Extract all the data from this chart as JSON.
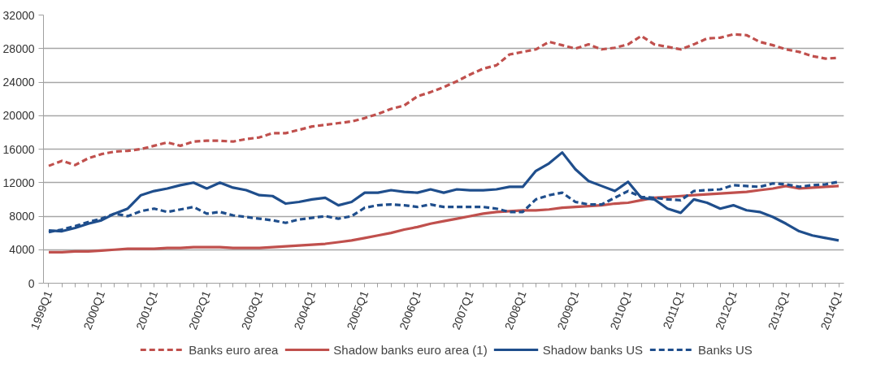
{
  "chart_data": {
    "type": "line",
    "categories": [
      "1999Q1",
      null,
      null,
      null,
      "2000Q1",
      null,
      null,
      null,
      "2001Q1",
      null,
      null,
      null,
      "2002Q1",
      null,
      null,
      null,
      "2003Q1",
      null,
      null,
      null,
      "2004Q1",
      null,
      null,
      null,
      "2005Q1",
      null,
      null,
      null,
      "2006Q1",
      null,
      null,
      null,
      "2007Q1",
      null,
      null,
      null,
      "2008Q1",
      null,
      null,
      null,
      "2009Q1",
      null,
      null,
      null,
      "2010Q1",
      null,
      null,
      null,
      "2011Q1",
      null,
      null,
      null,
      "2012Q1",
      null,
      null,
      null,
      "2013Q1",
      null,
      null,
      null,
      "2014Q1"
    ],
    "ylim": [
      0,
      32000
    ],
    "yticks": [
      0,
      4000,
      8000,
      12000,
      16000,
      20000,
      24000,
      28000,
      32000
    ],
    "grid": "y",
    "legend": "bottom",
    "marker": "none",
    "series": [
      {
        "name": "Banks euro area",
        "color": "#c0504d",
        "line_style": "dashed",
        "values": [
          14000,
          14600,
          14100,
          14900,
          15400,
          15700,
          15800,
          16000,
          16400,
          16800,
          16400,
          16900,
          17000,
          17000,
          16900,
          17200,
          17400,
          17900,
          17900,
          18300,
          18700,
          18900,
          19100,
          19300,
          19700,
          20200,
          20800,
          21200,
          22300,
          22800,
          23400,
          24100,
          24900,
          25600,
          26000,
          27300,
          27600,
          27900,
          28800,
          28400,
          28000,
          28500,
          27900,
          28100,
          28500,
          29500,
          28500,
          28200,
          27900,
          28500,
          29200,
          29300,
          29700,
          29600,
          28800,
          28400,
          27900,
          27600,
          27100,
          26800,
          26900
        ]
      },
      {
        "name": "Shadow banks euro area (1)",
        "color": "#c0504d",
        "line_style": "solid",
        "values": [
          3700,
          3700,
          3800,
          3800,
          3900,
          4000,
          4100,
          4100,
          4100,
          4200,
          4200,
          4300,
          4300,
          4300,
          4200,
          4200,
          4200,
          4300,
          4400,
          4500,
          4600,
          4700,
          4900,
          5100,
          5400,
          5700,
          6000,
          6400,
          6700,
          7100,
          7400,
          7700,
          8000,
          8300,
          8500,
          8600,
          8700,
          8700,
          8800,
          9000,
          9100,
          9200,
          9300,
          9500,
          9600,
          9900,
          10200,
          10300,
          10400,
          10500,
          10600,
          10700,
          10800,
          10900,
          11100,
          11300,
          11600,
          11300,
          11400,
          11500,
          11600
        ]
      },
      {
        "name": "Shadow banks US",
        "color": "#1f4e8c",
        "line_style": "solid",
        "values": [
          6300,
          6200,
          6600,
          7100,
          7500,
          8300,
          8900,
          10500,
          11000,
          11300,
          11700,
          12000,
          11300,
          12000,
          11400,
          11100,
          10500,
          10400,
          9500,
          9700,
          10000,
          10200,
          9300,
          9700,
          10800,
          10800,
          11100,
          10900,
          10800,
          11200,
          10800,
          11200,
          11100,
          11100,
          11200,
          11500,
          11500,
          13400,
          14300,
          15600,
          13600,
          12200,
          11600,
          11000,
          12100,
          10200,
          10000,
          8900,
          8400,
          10000,
          9600,
          8900,
          9300,
          8700,
          8500,
          7900,
          7100,
          6200,
          5700,
          5400,
          5100
        ]
      },
      {
        "name": "Banks US",
        "color": "#1f4e8c",
        "line_style": "dashed",
        "values": [
          6100,
          6400,
          6800,
          7300,
          7700,
          8300,
          8000,
          8600,
          8900,
          8500,
          8800,
          9100,
          8300,
          8500,
          8100,
          7900,
          7700,
          7500,
          7200,
          7600,
          7800,
          8000,
          7700,
          8000,
          9000,
          9300,
          9400,
          9300,
          9100,
          9400,
          9100,
          9100,
          9100,
          9100,
          8900,
          8500,
          8500,
          10000,
          10500,
          10800,
          9700,
          9400,
          9400,
          10200,
          11000,
          10300,
          10200,
          10000,
          9900,
          11000,
          11100,
          11200,
          11700,
          11600,
          11500,
          11900,
          11800,
          11500,
          11700,
          11800,
          12100
        ]
      }
    ]
  }
}
